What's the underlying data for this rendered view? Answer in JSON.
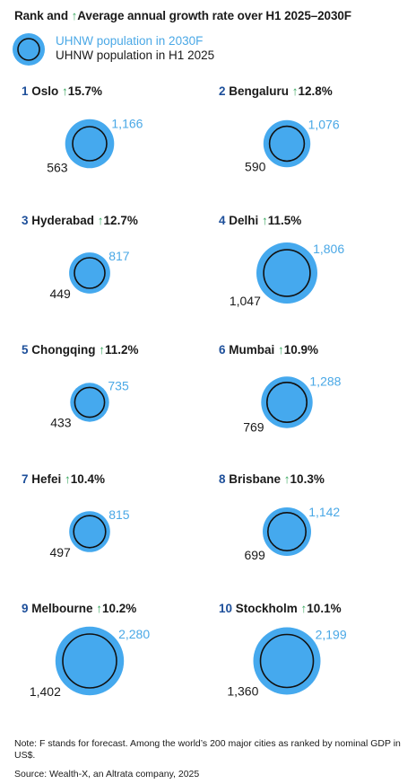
{
  "header": {
    "title_prefix": "Rank and ",
    "arrow": "↑",
    "title_suffix": "Average annual growth rate over H1 2025–2030F"
  },
  "legend": {
    "outer_label": "UHNW population in 2030F",
    "inner_label": "UHNW population in H1 2025"
  },
  "colors": {
    "outer_fill": "#45a9ee",
    "inner_stroke": "#111111",
    "label_2030": "#4aa8e6",
    "rank": "#1d4f9a",
    "arrow": "#3aa860"
  },
  "chart_data": {
    "type": "bubble",
    "series": [
      {
        "name": "UHNW population in 2030F"
      },
      {
        "name": "UHNW population in H1 2025"
      }
    ],
    "cities": [
      {
        "rank": "1",
        "city": "Oslo",
        "growth": "15.7%",
        "pop_2030": 1166,
        "pop_2025": 563
      },
      {
        "rank": "2",
        "city": "Bengaluru",
        "growth": "12.8%",
        "pop_2030": 1076,
        "pop_2025": 590
      },
      {
        "rank": "3",
        "city": "Hyderabad",
        "growth": "12.7%",
        "pop_2030": 817,
        "pop_2025": 449
      },
      {
        "rank": "4",
        "city": "Delhi",
        "growth": "11.5%",
        "pop_2030": 1806,
        "pop_2025": 1047
      },
      {
        "rank": "5",
        "city": "Chongqing",
        "growth": "11.2%",
        "pop_2030": 735,
        "pop_2025": 433
      },
      {
        "rank": "6",
        "city": "Mumbai",
        "growth": "10.9%",
        "pop_2030": 1288,
        "pop_2025": 769
      },
      {
        "rank": "7",
        "city": "Hefei",
        "growth": "10.4%",
        "pop_2030": 815,
        "pop_2025": 497
      },
      {
        "rank": "8",
        "city": "Brisbane",
        "growth": "10.3%",
        "pop_2030": 1142,
        "pop_2025": 699
      },
      {
        "rank": "9",
        "city": "Melbourne",
        "growth": "10.2%",
        "pop_2030": 2280,
        "pop_2025": 1402
      },
      {
        "rank": "10",
        "city": "Stockholm",
        "growth": "10.1%",
        "pop_2030": 2199,
        "pop_2025": 1360
      }
    ]
  },
  "footer": {
    "note": "Note: F stands for forecast. Among the world’s 200 major cities as ranked by nominal GDP in US$.",
    "source": "Source: Wealth-X, an Altrata company, 2025"
  }
}
